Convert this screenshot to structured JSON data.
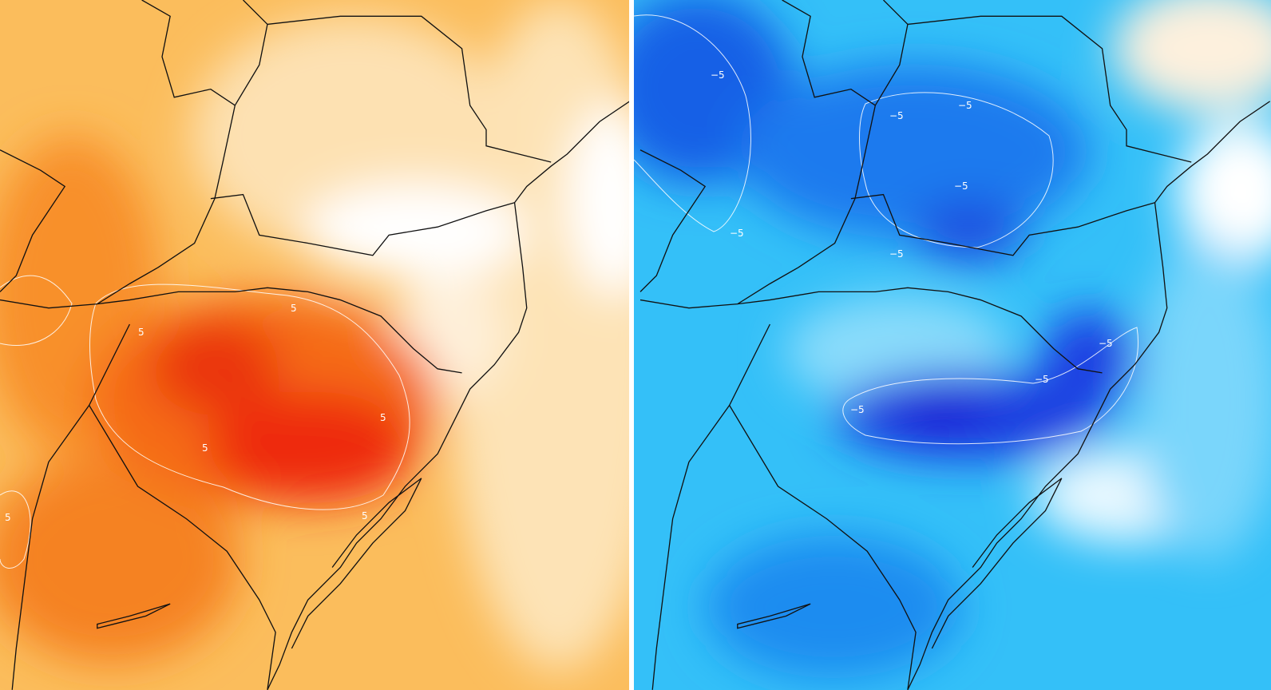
{
  "panels": [
    {
      "id": "left",
      "colors": {
        "base": "#fbc46a",
        "light": "#fdebc8",
        "mid": "#f9a43a",
        "strong": "#f37a12",
        "max": "#ee2a10",
        "white": "#ffffff"
      },
      "contour_labels": [
        "5",
        "5",
        "5",
        "5",
        "5",
        "5"
      ]
    },
    {
      "id": "right",
      "colors": {
        "base": "#33c3f8",
        "light": "#8adcfb",
        "mid": "#1aa6f2",
        "strong": "#1560e8",
        "max": "#1a1fd6",
        "white": "#ffffff"
      },
      "contour_labels": [
        "−5",
        "−5",
        "−5",
        "−5",
        "−5",
        "−5",
        "−5",
        "−5",
        "−5"
      ]
    }
  ],
  "border_color": "#111111",
  "contour_color": "#ffffff"
}
